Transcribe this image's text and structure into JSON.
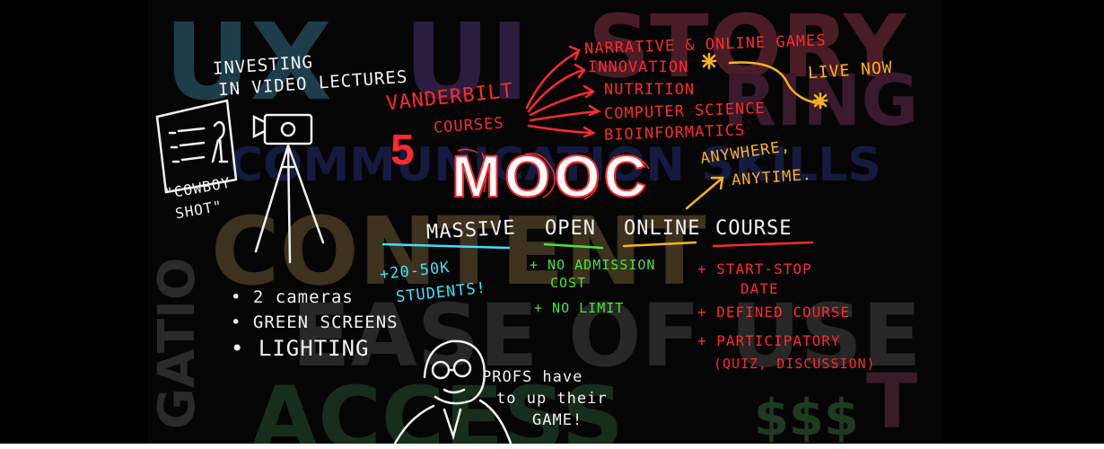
{
  "background_words": {
    "ux": "UX",
    "ui": "UI",
    "story": "STORY",
    "ring": "RING",
    "communication": "COMMUNICATION SKILLS",
    "content": "CONTENT",
    "ease_of_use": "EASE OF USE",
    "access": "ACCESS",
    "dollars": "$$$",
    "gation": "GATIO",
    "t": "T"
  },
  "notes": {
    "investing_line1": "INVESTING",
    "investing_line2": "IN VIDEO LECTURES",
    "cowboy_line1": "\"COWBOY",
    "cowboy_line2": "SHOT\"",
    "vanderbilt": "VANDERBILT",
    "five": "5",
    "courses": "COURSES",
    "courses_list": [
      "NARRATIVE & ONLINE GAMES",
      "INNOVATION",
      "NUTRITION",
      "COMPUTER SCIENCE",
      "BIOINFORMATICS"
    ],
    "live_now": "LIVE NOW",
    "mooc": "MOOC",
    "anywhere": "ANYWHERE,",
    "anytime": "ANYTIME.",
    "massive": "MASSIVE",
    "open": "OPEN",
    "online": "ONLINE",
    "course": "COURSE",
    "students_line1": "+20-50K",
    "students_line2": "STUDENTS!",
    "admission_line1": "+ NO ADMISSION",
    "admission_line2": "COST",
    "no_limit": "+ NO LIMIT",
    "start_stop_line1": "+ START-STOP",
    "start_stop_line2": "DATE",
    "defined_course": "+ DEFINED COURSE",
    "participatory_line1": "+ PARTICIPATORY",
    "participatory_line2": "(QUIZ, DISCUSSION)",
    "equipment": [
      "2 cameras",
      "GREEN SCREENS",
      "LIGHTING"
    ],
    "profs_line1": "PROFS have",
    "profs_line2": "to up their",
    "profs_line3": "GAME!"
  },
  "colors": {
    "white": "#f2f2f2",
    "red": "#ff2a2a",
    "yellow": "#ffb21a",
    "green": "#46e63a",
    "cyan": "#3ee0ff"
  }
}
